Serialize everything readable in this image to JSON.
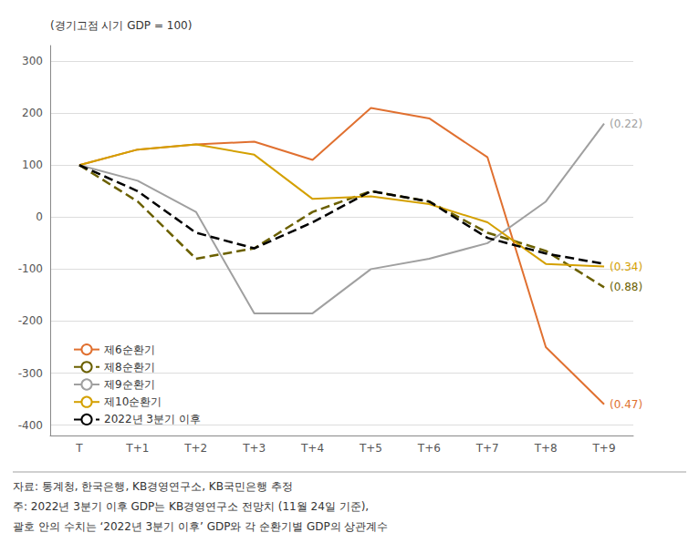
{
  "chart_data": {
    "type": "line",
    "categories": [
      "T",
      "T+1",
      "T+2",
      "T+3",
      "T+4",
      "T+5",
      "T+6",
      "T+7",
      "T+8",
      "T+9"
    ],
    "series": [
      {
        "name": "제6순환기",
        "color": "#E07030",
        "line_style": "solid",
        "annotation": "(0.47)",
        "values": [
          100,
          130,
          140,
          145,
          110,
          210,
          190,
          115,
          -250,
          -360
        ]
      },
      {
        "name": "제8순환기",
        "color": "#6B6000",
        "line_style": "dashed",
        "annotation": "(0.88)",
        "values": [
          100,
          30,
          -80,
          -60,
          10,
          50,
          30,
          -30,
          -65,
          -135
        ]
      },
      {
        "name": "제9순환기",
        "color": "#A0A0A0",
        "line_style": "solid",
        "annotation": "(0.22)",
        "values": [
          100,
          70,
          10,
          -185,
          -185,
          -100,
          -80,
          -50,
          30,
          180
        ]
      },
      {
        "name": "제10순환기",
        "color": "#D4A000",
        "line_style": "solid",
        "annotation": "(0.34)",
        "values": [
          100,
          130,
          140,
          120,
          35,
          40,
          25,
          -10,
          -90,
          -95
        ]
      },
      {
        "name": "2022년 3분기 이후",
        "color": "#000000",
        "line_style": "dashed",
        "values": [
          100,
          50,
          -30,
          -60,
          -10,
          50,
          30,
          -40,
          -70,
          -90
        ]
      }
    ],
    "ylim": [
      -420,
      330
    ],
    "yticks": [
      -400,
      -300,
      -200,
      -100,
      0,
      100,
      200,
      300
    ],
    "ylabel": "(경기고점 시기 GDP = 100)",
    "grid": true,
    "legend": "lower left",
    "footnotes": [
      "자료: 통계청, 한국은행, KB경영연구소, KB국민은행 추정",
      "주: 2022년 3분기 이후 GDP는 KB경영연구소 전망치 (11월 24일 기준),",
      "괄호 안의 수치는 ‘2022년 3분기 이후’ GDP와 각 순환기별 GDP의 상관계수"
    ]
  }
}
